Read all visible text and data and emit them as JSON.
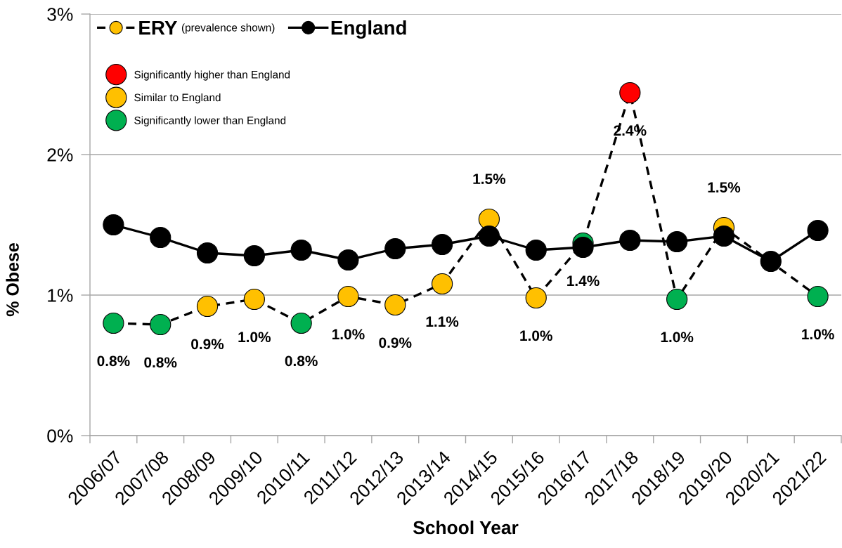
{
  "chart_data": {
    "type": "line",
    "xlabel": "School Year",
    "ylabel": "% Obese",
    "categories": [
      "2006/07",
      "2007/08",
      "2008/09",
      "2009/10",
      "2010/11",
      "2011/12",
      "2012/13",
      "2013/14",
      "2014/15",
      "2015/16",
      "2016/17",
      "2017/18",
      "2018/19",
      "2019/20",
      "2020/21",
      "2021/22"
    ],
    "ylim": [
      0,
      3
    ],
    "yticks": [
      {
        "value": 0,
        "label": "0%"
      },
      {
        "value": 1,
        "label": "1%"
      },
      {
        "value": 2,
        "label": "2%"
      },
      {
        "value": 3,
        "label": "3%"
      }
    ],
    "grid": "y",
    "legend": "top left",
    "annotations": [
      "(prevalence shown)"
    ],
    "series": [
      {
        "name": "ERY",
        "color": "#000000",
        "line_style": "dashed",
        "marker": "circle",
        "values": [
          0.8,
          0.79,
          0.92,
          0.97,
          0.8,
          0.99,
          0.93,
          1.08,
          1.54,
          0.98,
          1.37,
          2.44,
          0.97,
          1.48,
          null,
          0.99
        ],
        "colors": [
          "#00b050",
          "#00b050",
          "#ffc000",
          "#ffc000",
          "#00b050",
          "#ffc000",
          "#ffc000",
          "#ffc000",
          "#ffc000",
          "#ffc000",
          "#00b050",
          "#ff0000",
          "#00b050",
          "#ffc000",
          null,
          "#00b050"
        ],
        "value_labels": [
          "0.8%",
          "0.8%",
          "0.9%",
          "1.0%",
          "0.8%",
          "1.0%",
          "0.9%",
          "1.1%",
          "1.5%",
          "1.0%",
          "1.4%",
          "2.4%",
          "1.0%",
          "1.5%",
          null,
          "1.0%"
        ]
      },
      {
        "name": "England",
        "color": "#000000",
        "line_style": "solid",
        "marker": "circle",
        "values": [
          1.5,
          1.41,
          1.3,
          1.28,
          1.32,
          1.25,
          1.33,
          1.36,
          1.42,
          1.32,
          1.34,
          1.39,
          1.38,
          1.42,
          1.24,
          1.46
        ]
      },
      {
        "name": "Significantly higher than England",
        "type": "scatter",
        "color": "#ff0000",
        "marker": "circle",
        "values": [
          null,
          null,
          null,
          null,
          null,
          null,
          null,
          null,
          null,
          null,
          null,
          null,
          null,
          null,
          null,
          null
        ]
      },
      {
        "name": "Similar to England",
        "type": "scatter",
        "color": "#ffc000",
        "marker": "circle",
        "values": [
          null,
          null,
          null,
          null,
          null,
          null,
          null,
          null,
          null,
          null,
          null,
          null,
          null,
          null,
          null,
          null
        ]
      },
      {
        "name": "Significantly lower than England",
        "type": "scatter",
        "color": "#00b050",
        "marker": "circle",
        "values": [
          null,
          null,
          null,
          null,
          null,
          null,
          null,
          null,
          null,
          null,
          null,
          null,
          null,
          null,
          null,
          null
        ]
      }
    ]
  }
}
